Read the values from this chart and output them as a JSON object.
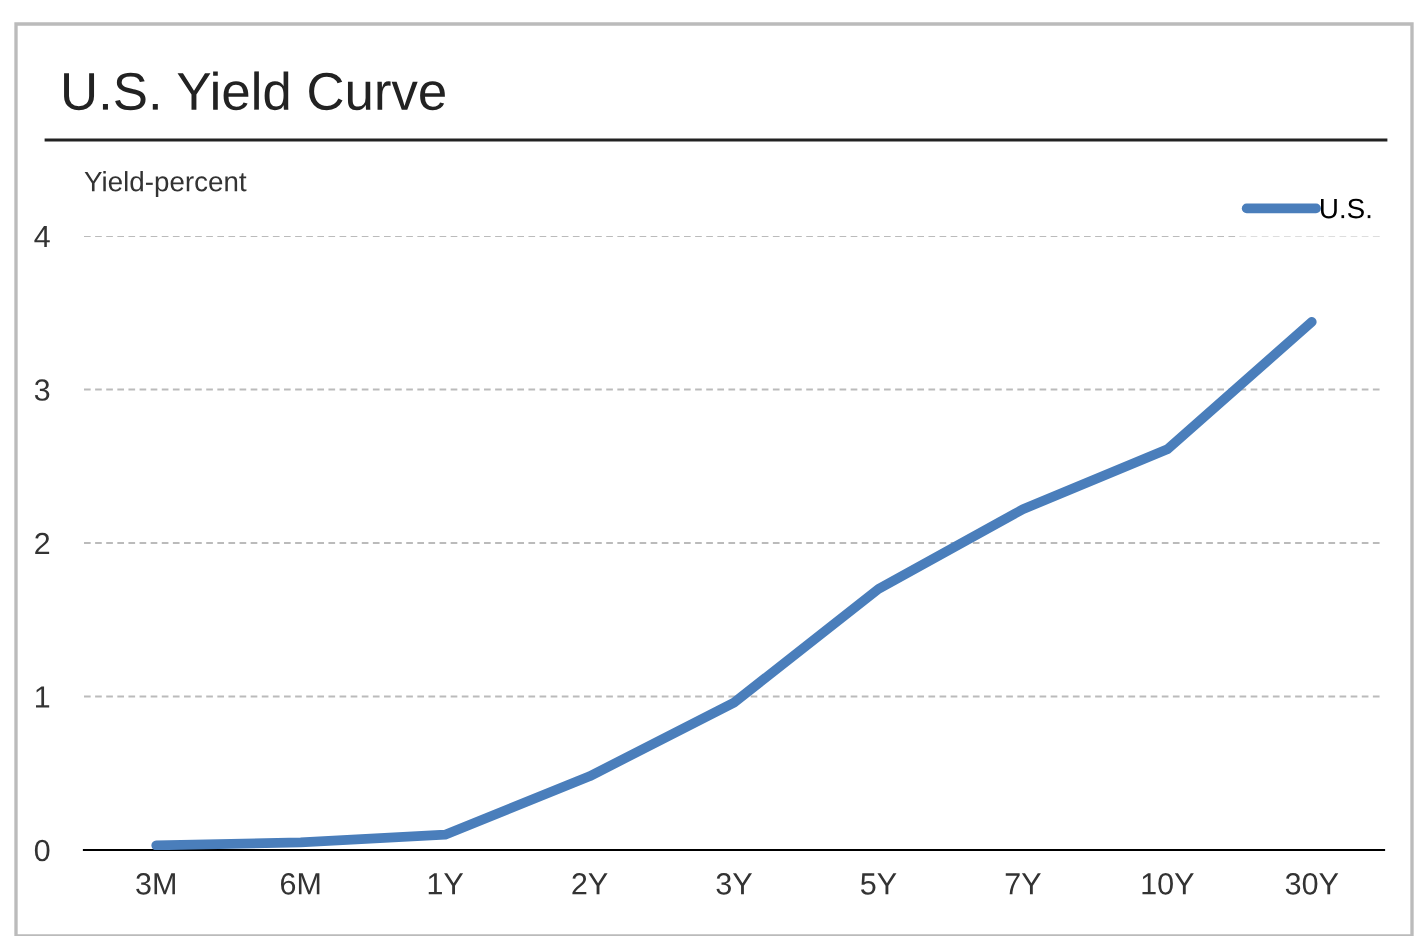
{
  "chart_data": {
    "type": "line",
    "title": "U.S. Yield Curve",
    "ylabel": "Yield-percent",
    "categories": [
      "3M",
      "6M",
      "1Y",
      "2Y",
      "3Y",
      "5Y",
      "7Y",
      "10Y",
      "30Y"
    ],
    "series": [
      {
        "name": "U.S.",
        "color": "#4a7ebb",
        "values": [
          0.03,
          0.05,
          0.1,
          0.48,
          0.96,
          1.7,
          2.22,
          2.61,
          3.44
        ]
      }
    ],
    "ylim": [
      0,
      4
    ],
    "yticks": [
      0,
      1,
      2,
      3,
      4
    ],
    "grid": "y",
    "legend": "top right",
    "marker": "none",
    "line_style": "solid"
  }
}
